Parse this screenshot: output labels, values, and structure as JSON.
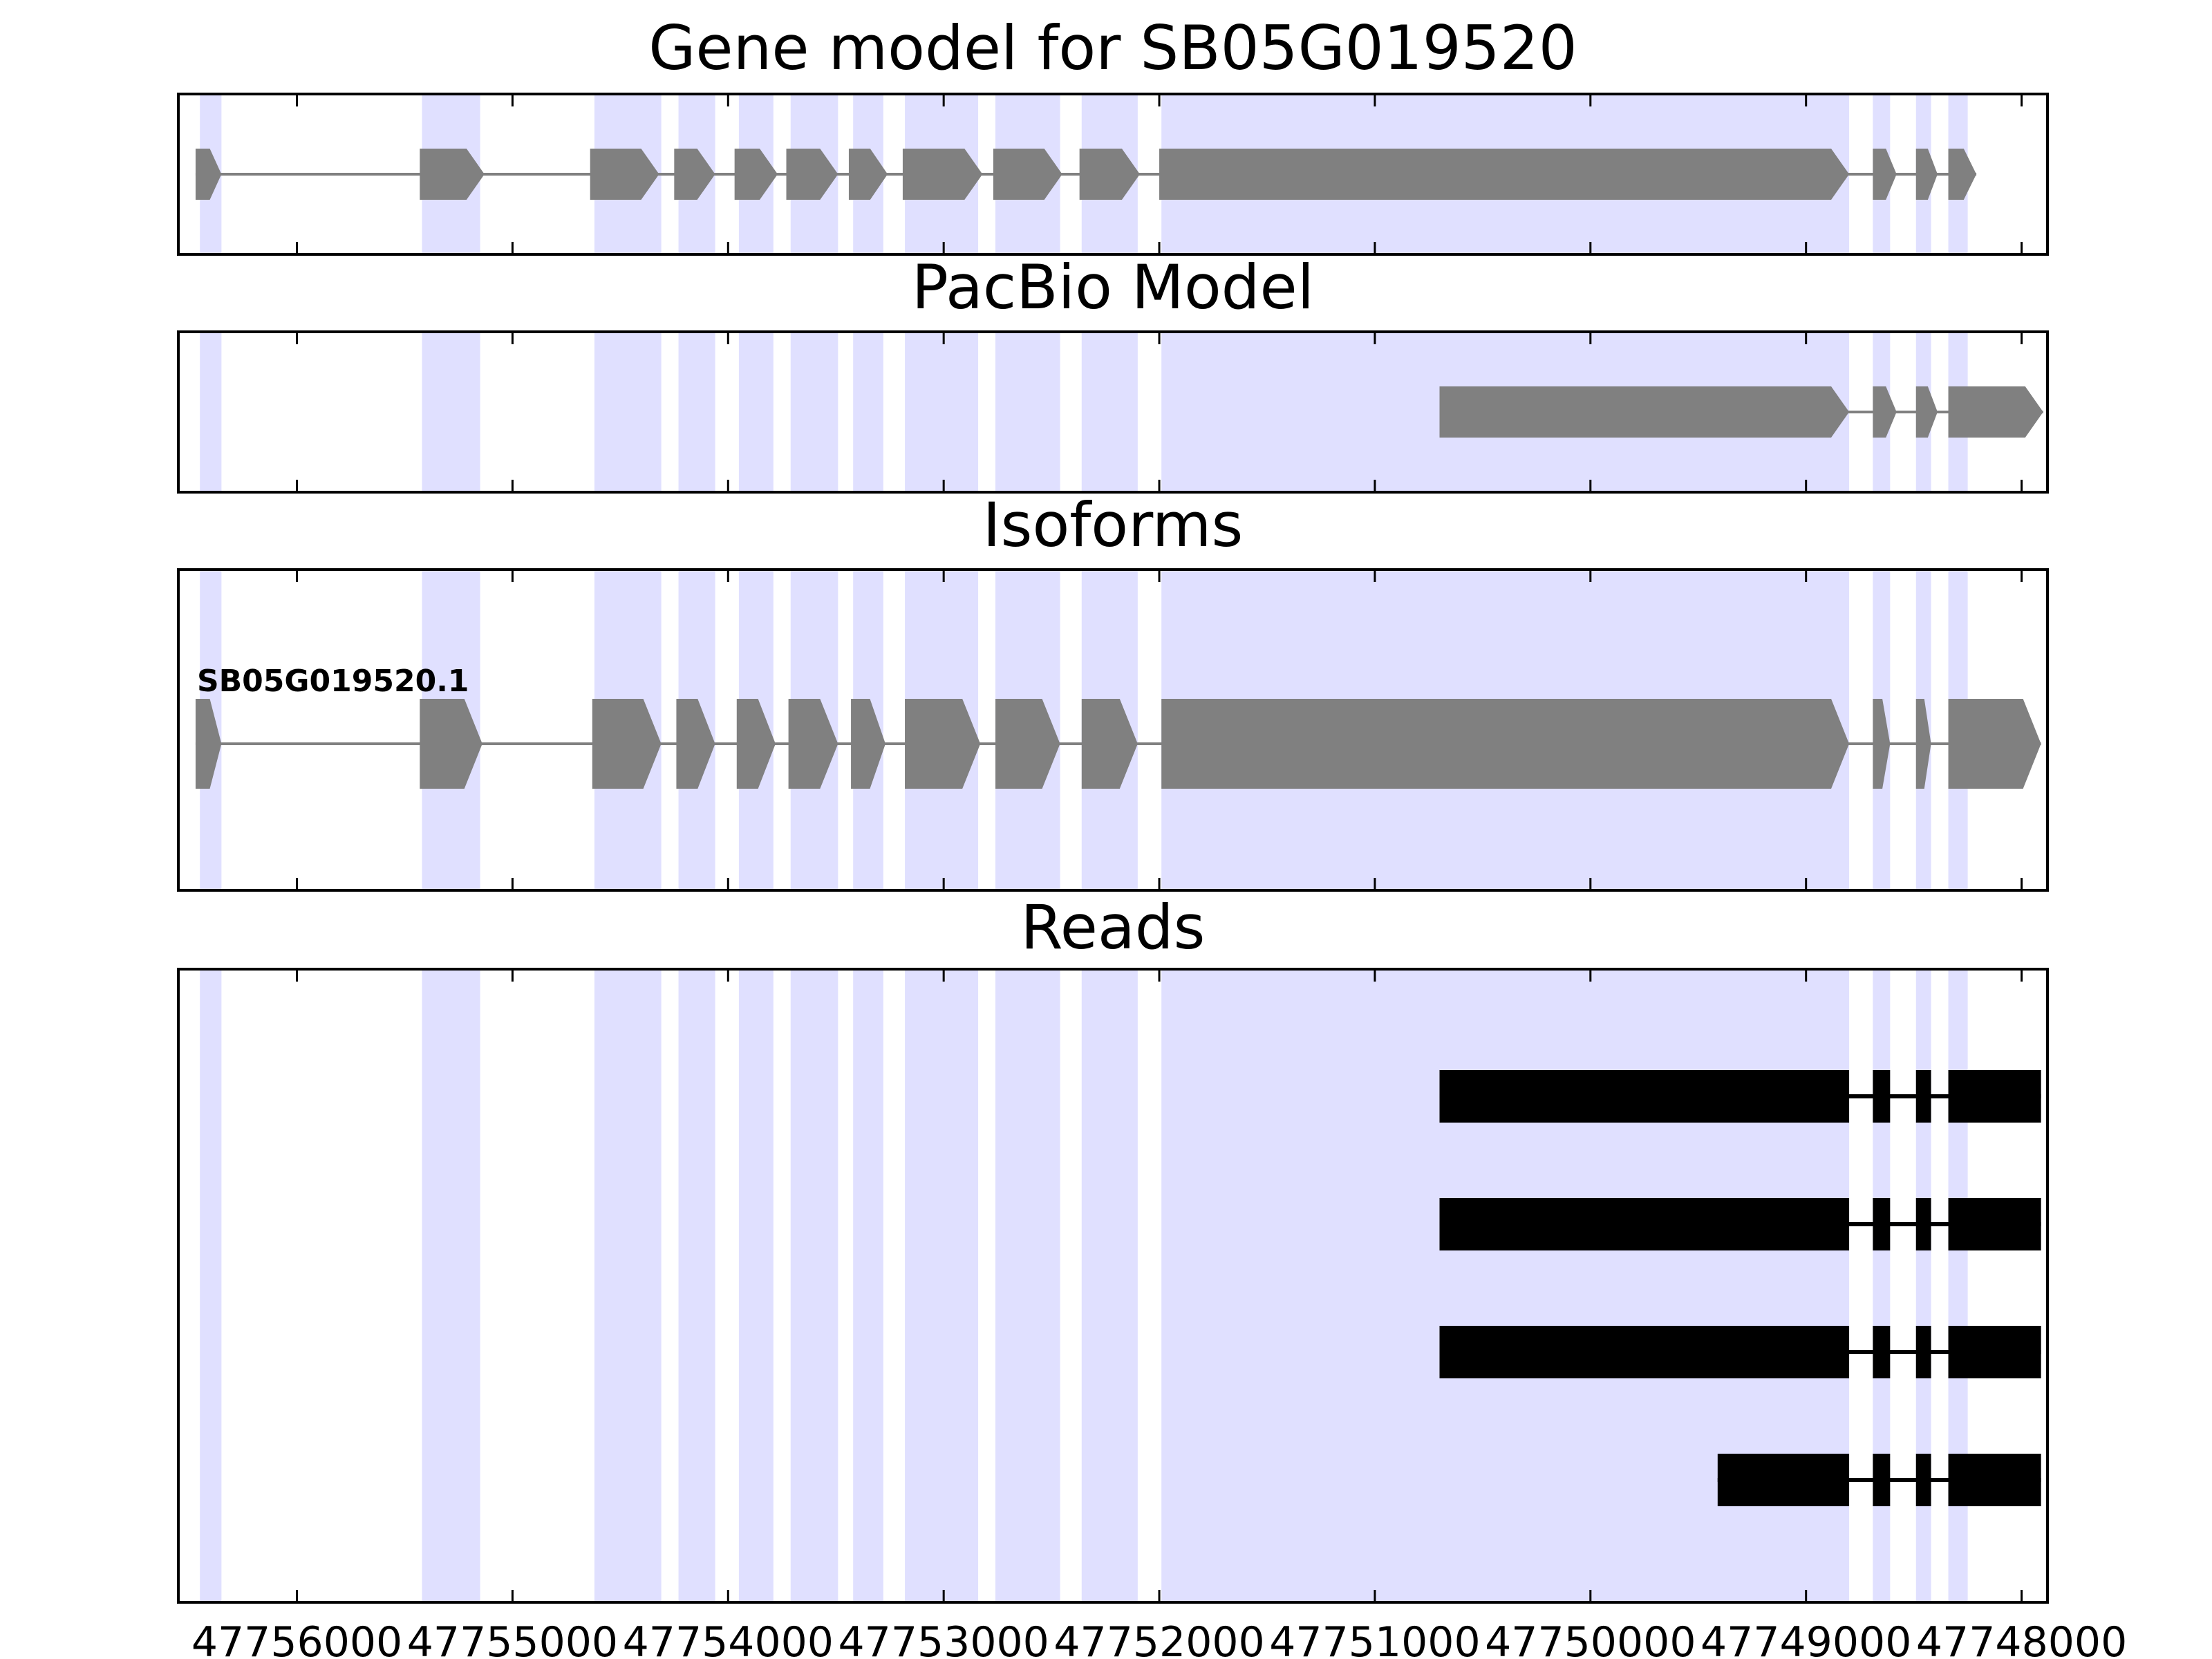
{
  "chart_data": {
    "type": "gene-structure",
    "x_reversed": true,
    "xlim": [
      47756550,
      47747880
    ],
    "xticks": [
      47756000,
      47755000,
      47754000,
      47753000,
      47752000,
      47751000,
      47750000,
      47749000,
      47748000
    ],
    "xtick_labels": [
      "47756000",
      "47755000",
      "47754000",
      "47753000",
      "47752000",
      "47751000",
      "47750000",
      "47749000",
      "47748000"
    ],
    "highlight_color": "#e0e0ff",
    "highlight_regions": [
      [
        47756450,
        47756350
      ],
      [
        47755420,
        47755150
      ],
      [
        47754620,
        47754310
      ],
      [
        47754230,
        47754060
      ],
      [
        47753950,
        47753790
      ],
      [
        47753710,
        47753490
      ],
      [
        47753420,
        47753280
      ],
      [
        47753180,
        47752840
      ],
      [
        47752760,
        47752460
      ],
      [
        47752360,
        47752100
      ],
      [
        47751990,
        47748800
      ],
      [
        47748690,
        47748610
      ],
      [
        47748490,
        47748420
      ],
      [
        47748340,
        47748250
      ]
    ],
    "panels": [
      {
        "title": "Gene model for SB05G019520",
        "features": [
          {
            "color": "#808080",
            "label": "",
            "exons": [
              [
                47756470,
                47756350
              ],
              [
                47755430,
                47755130
              ],
              [
                47754640,
                47754320
              ],
              [
                47754250,
                47754060
              ],
              [
                47753970,
                47753770
              ],
              [
                47753730,
                47753490
              ],
              [
                47753440,
                47753260
              ],
              [
                47753190,
                47752820
              ],
              [
                47752770,
                47752450
              ],
              [
                47752370,
                47752090
              ],
              [
                47752000,
                47748800
              ],
              [
                47748690,
                47748580
              ],
              [
                47748490,
                47748390
              ],
              [
                47748340,
                47748210
              ]
            ]
          }
        ]
      },
      {
        "title": "PacBio Model",
        "features": [
          {
            "color": "#808080",
            "label": "",
            "exons": [
              [
                47750700,
                47748800
              ],
              [
                47748690,
                47748580
              ],
              [
                47748490,
                47748390
              ],
              [
                47748340,
                47747900
              ]
            ]
          }
        ]
      },
      {
        "title": "Isoforms",
        "features": [
          {
            "color": "#808080",
            "label": "SB05G019520.1",
            "exons": [
              [
                47756470,
                47756350
              ],
              [
                47755430,
                47755140
              ],
              [
                47754630,
                47754310
              ],
              [
                47754240,
                47754060
              ],
              [
                47753960,
                47753780
              ],
              [
                47753720,
                47753490
              ],
              [
                47753430,
                47753270
              ],
              [
                47753180,
                47752830
              ],
              [
                47752760,
                47752460
              ],
              [
                47752360,
                47752100
              ],
              [
                47751990,
                47748800
              ],
              [
                47748690,
                47748610
              ],
              [
                47748490,
                47748420
              ],
              [
                47748340,
                47747910
              ]
            ]
          }
        ]
      },
      {
        "title": "Reads",
        "features": [
          {
            "color": "#000000",
            "label": "",
            "exons": [
              [
                47750700,
                47748800
              ],
              [
                47748690,
                47748610
              ],
              [
                47748490,
                47748420
              ],
              [
                47748340,
                47747910
              ]
            ]
          },
          {
            "color": "#000000",
            "label": "",
            "exons": [
              [
                47750700,
                47748800
              ],
              [
                47748690,
                47748610
              ],
              [
                47748490,
                47748420
              ],
              [
                47748340,
                47747910
              ]
            ]
          },
          {
            "color": "#000000",
            "label": "",
            "exons": [
              [
                47750700,
                47748800
              ],
              [
                47748690,
                47748610
              ],
              [
                47748490,
                47748420
              ],
              [
                47748340,
                47747910
              ]
            ]
          },
          {
            "color": "#000000",
            "label": "",
            "exons": [
              [
                47749410,
                47748800
              ],
              [
                47748690,
                47748610
              ],
              [
                47748490,
                47748420
              ],
              [
                47748340,
                47747910
              ]
            ]
          }
        ]
      }
    ]
  }
}
